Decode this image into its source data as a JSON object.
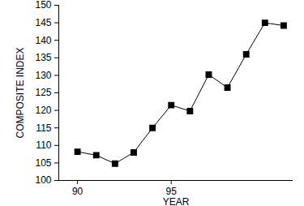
{
  "chart_data": {
    "type": "line",
    "x_label": "YEAR",
    "y_label": "COMPOSITE INDEX",
    "x": [
      90,
      91,
      92,
      93,
      94,
      95,
      96,
      97,
      98,
      99,
      100,
      101
    ],
    "series": [
      {
        "name": "COMPOSITE INDEX",
        "color": "#000000",
        "marker": "square",
        "line_style": "solid",
        "values": [
          108.2,
          107.2,
          104.8,
          108,
          115,
          121.5,
          119.8,
          130.2,
          126.5,
          136,
          145,
          144.2
        ]
      }
    ],
    "xlim": [
      89,
      101.5
    ],
    "xticks": [
      90,
      95
    ],
    "ylim": [
      100,
      150
    ],
    "yticks": [
      100,
      105,
      110,
      115,
      120,
      125,
      130,
      135,
      140,
      145,
      150
    ],
    "grid": false
  }
}
